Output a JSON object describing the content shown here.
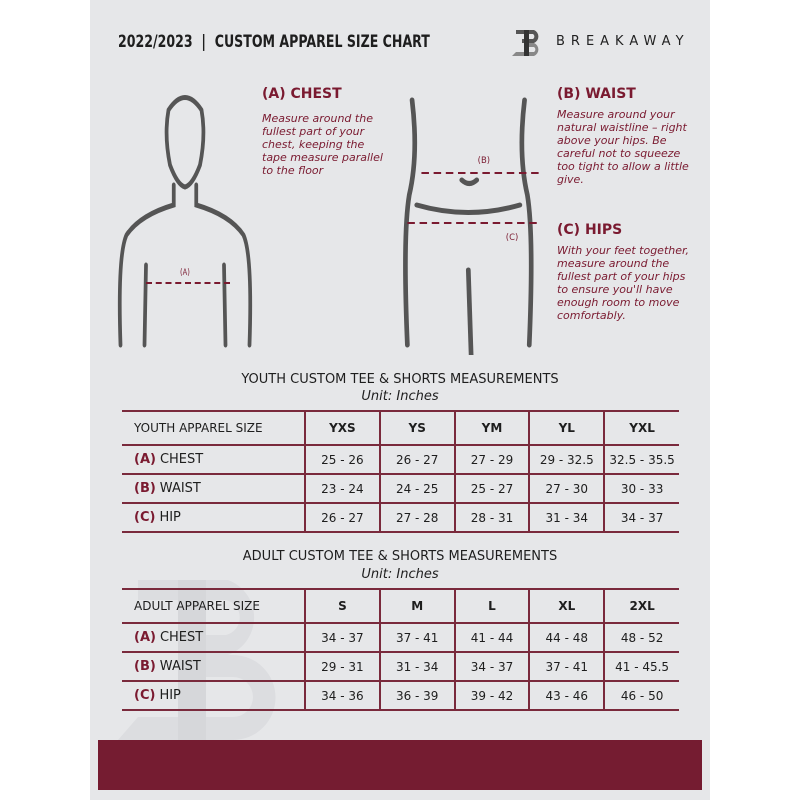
{
  "header": {
    "title": "2022/2023  |  CUSTOM APPAREL SIZE CHART",
    "brand": "BREAKAWAY"
  },
  "guide": {
    "chest": {
      "heading": "(A) CHEST",
      "text": "Measure around the fullest part of your chest, keeping the tape measure parallel to the floor",
      "marker": "(A)"
    },
    "waist": {
      "heading": "(B) WAIST",
      "text": "Measure around your natural waistline – right above your hips. Be careful not to squeeze too tight to allow a little give.",
      "marker": "(B)"
    },
    "hips": {
      "heading": "(C) HIPS",
      "text": "With your feet together, measure around the fullest part of your hips to ensure you'll have enough room to move comfortably.",
      "marker": "(C)"
    }
  },
  "youth": {
    "title": "YOUTH CUSTOM TEE & SHORTS MEASUREMENTS",
    "unit": "Unit: Inches",
    "size_label": "YOUTH APPAREL SIZE",
    "sizes": [
      "YXS",
      "YS",
      "YM",
      "YL",
      "YXL"
    ],
    "rows": [
      {
        "code": "(A)",
        "name": "CHEST",
        "values": [
          "25 - 26",
          "26 - 27",
          "27 - 29",
          "29 - 32.5",
          "32.5 - 35.5"
        ]
      },
      {
        "code": "(B)",
        "name": "WAIST",
        "values": [
          "23 - 24",
          "24 - 25",
          "25 - 27",
          "27 - 30",
          "30 - 33"
        ]
      },
      {
        "code": "(C)",
        "name": "HIP",
        "values": [
          "26 - 27",
          "27 - 28",
          "28 - 31",
          "31 - 34",
          "34 - 37"
        ]
      }
    ]
  },
  "adult": {
    "title": "ADULT CUSTOM TEE & SHORTS MEASUREMENTS",
    "unit": "Unit: Inches",
    "size_label": "ADULT APPAREL SIZE",
    "sizes": [
      "S",
      "M",
      "L",
      "XL",
      "2XL"
    ],
    "rows": [
      {
        "code": "(A)",
        "name": "CHEST",
        "values": [
          "34 - 37",
          "37 - 41",
          "41 - 44",
          "44 - 48",
          "48 - 52"
        ]
      },
      {
        "code": "(B)",
        "name": "WAIST",
        "values": [
          "29 - 31",
          "31 - 34",
          "34 - 37",
          "37 - 41",
          "41 - 45.5"
        ]
      },
      {
        "code": "(C)",
        "name": "HIP",
        "values": [
          "34 - 36",
          "36 - 39",
          "39 - 42",
          "43 - 46",
          "46 - 50"
        ]
      }
    ]
  },
  "colors": {
    "accent": "#7a1a30",
    "footer": "#751c31",
    "background": "#e6e7e9"
  }
}
